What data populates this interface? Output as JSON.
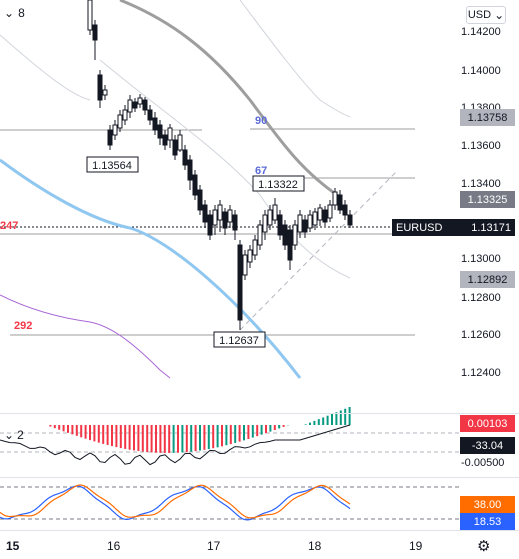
{
  "toolbar": {
    "interval_count": "8",
    "currency": "USD"
  },
  "price_axis": {
    "labels": [
      "1.14200",
      "1.14000",
      "1.13800",
      "1.13600",
      "1.13400",
      "1.13000",
      "1.12800",
      "1.12600",
      "1.12400"
    ]
  },
  "tags": {
    "ma90": "1.13758",
    "ma_grey": "1.13325",
    "symbol": "EURUSD",
    "last": "1.13171",
    "lower_band": "1.12892",
    "macd_value": "0.00103",
    "osc_value": "-33.04",
    "osc_scale": "-0.00500",
    "stoch_k": "38.00",
    "stoch_d": "18.53"
  },
  "levels": {
    "high_label": "1.13564",
    "mid_label": "1.13322",
    "low_label": "1.12637",
    "ma90_label": "90",
    "ma67_label": "67",
    "ma247_label": "247",
    "ma292_label": "292"
  },
  "indicator_pane": {
    "count": "2"
  },
  "time_axis": [
    "15",
    "16",
    "17",
    "18",
    "19"
  ],
  "colors": {
    "bull": "#089981",
    "bear": "#f23645",
    "ma_grey": "#9e9e9e",
    "ma_blue": "#90c7f0",
    "ma_purple": "#a766d6",
    "stoch_blue": "#2962ff",
    "stoch_orange": "#ff6d00"
  },
  "icons": {
    "chevron": "chevron-down-icon",
    "gear": "gear-icon"
  }
}
